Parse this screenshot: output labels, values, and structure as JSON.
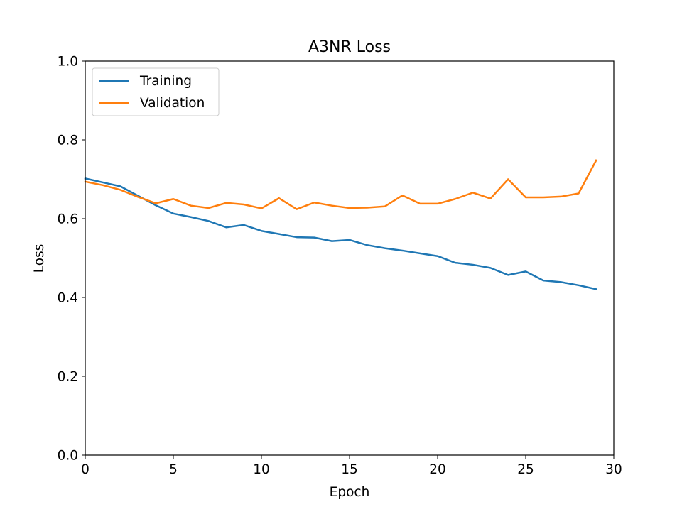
{
  "chart_data": {
    "type": "line",
    "title": "A3NR Loss",
    "xlabel": "Epoch",
    "ylabel": "Loss",
    "xlim": [
      0,
      30
    ],
    "ylim": [
      0,
      1.0
    ],
    "x_ticks": [
      "0",
      "5",
      "10",
      "15",
      "20",
      "25",
      "30"
    ],
    "y_ticks": [
      "0.0",
      "0.2",
      "0.4",
      "0.6",
      "0.8",
      "1.0"
    ],
    "grid": false,
    "legend_position": "upper-left",
    "x": [
      0,
      1,
      2,
      3,
      4,
      5,
      6,
      7,
      8,
      9,
      10,
      11,
      12,
      13,
      14,
      15,
      16,
      17,
      18,
      19,
      20,
      21,
      22,
      23,
      24,
      25,
      26,
      27,
      28,
      29
    ],
    "series": [
      {
        "name": "Training",
        "color": "#1f77b4",
        "values": [
          0.702,
          0.692,
          0.682,
          0.658,
          0.634,
          0.613,
          0.604,
          0.594,
          0.578,
          0.584,
          0.569,
          0.561,
          0.553,
          0.552,
          0.543,
          0.546,
          0.533,
          0.525,
          0.519,
          0.512,
          0.505,
          0.488,
          0.483,
          0.475,
          0.457,
          0.466,
          0.443,
          0.439,
          0.431,
          0.421
        ]
      },
      {
        "name": "Validation",
        "color": "#ff7f0e",
        "values": [
          0.694,
          0.685,
          0.673,
          0.655,
          0.639,
          0.65,
          0.633,
          0.627,
          0.64,
          0.636,
          0.626,
          0.652,
          0.624,
          0.641,
          0.633,
          0.627,
          0.628,
          0.631,
          0.659,
          0.638,
          0.638,
          0.65,
          0.666,
          0.651,
          0.7,
          0.654,
          0.654,
          0.656,
          0.664,
          0.748
        ]
      }
    ]
  }
}
